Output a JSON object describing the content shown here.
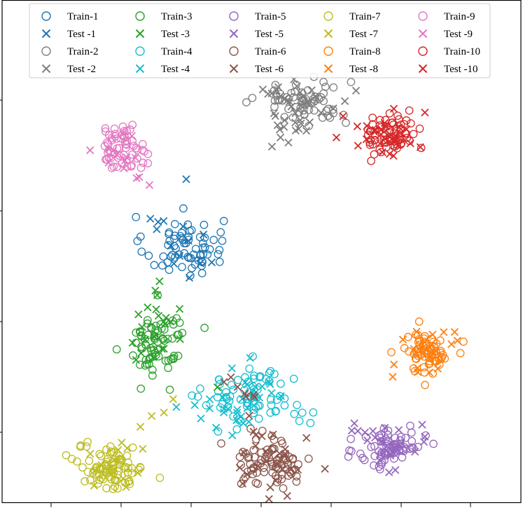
{
  "chart_data": {
    "type": "scatter",
    "title": "",
    "xlabel": "",
    "ylabel": "",
    "xlim": [
      0,
      100
    ],
    "ylim": [
      0,
      100
    ],
    "grid": false,
    "legend_position": "top",
    "marker_legend": {
      "o": "open circle (train)",
      "x": "cross (test)"
    },
    "classes": [
      {
        "id": 1,
        "color": "#1f77b4",
        "train_label": "Train-1",
        "test_label": "Test -1",
        "center": [
          35,
          51
        ],
        "spread": [
          3.8,
          3.0
        ],
        "train_n": 70,
        "test_n": 14,
        "test_tail_to": [
          30,
          67
        ]
      },
      {
        "id": 2,
        "color": "#7f7f7f",
        "train_label": "Train-2",
        "test_label": "Test -2",
        "center": [
          58,
          80
        ],
        "spread": [
          4.5,
          2.4
        ],
        "train_n": 60,
        "test_n": 42,
        "test_tail_to": [
          53,
          70
        ]
      },
      {
        "id": 3,
        "color": "#2ca02c",
        "train_label": "Train-3",
        "test_label": "Test -3",
        "center": [
          30,
          32
        ],
        "spread": [
          2.8,
          3.6
        ],
        "train_n": 70,
        "test_n": 24,
        "test_tail_to": [
          31,
          44
        ]
      },
      {
        "id": 4,
        "color": "#17becf",
        "train_label": "Train-4",
        "test_label": "Test -4",
        "center": [
          49,
          21
        ],
        "spread": [
          5.0,
          3.0
        ],
        "train_n": 75,
        "test_n": 32,
        "test_tail_to": [
          35,
          14
        ]
      },
      {
        "id": 5,
        "color": "#9467bd",
        "train_label": "Train-5",
        "test_label": "Test -5",
        "center": [
          75,
          11
        ],
        "spread": [
          3.2,
          2.2
        ],
        "train_n": 70,
        "test_n": 25,
        "test_tail_to": [
          68,
          15
        ]
      },
      {
        "id": 6,
        "color": "#8c564b",
        "train_label": "Train-6",
        "test_label": "Test -6",
        "center": [
          52,
          8
        ],
        "spread": [
          3.8,
          2.4
        ],
        "train_n": 80,
        "test_n": 34,
        "test_tail_to": [
          45,
          26
        ]
      },
      {
        "id": 7,
        "color": "#bcbd22",
        "train_label": "Train-7",
        "test_label": "Test -7",
        "center": [
          21,
          7
        ],
        "spread": [
          3.2,
          2.3
        ],
        "train_n": 85,
        "test_n": 18,
        "test_tail_to": [
          30,
          20
        ]
      },
      {
        "id": 8,
        "color": "#ff7f0e",
        "train_label": "Train-8",
        "test_label": "Test -8",
        "center": [
          82,
          30
        ],
        "spread": [
          2.4,
          2.0
        ],
        "train_n": 70,
        "test_n": 20,
        "test_tail_to": [
          73,
          25
        ]
      },
      {
        "id": 9,
        "color": "#e377c2",
        "train_label": "Train-9",
        "test_label": "Test -9",
        "center": [
          23,
          71
        ],
        "spread": [
          2.4,
          2.2
        ],
        "train_n": 60,
        "test_n": 14,
        "test_tail_to": [
          27,
          62
        ]
      },
      {
        "id": 10,
        "color": "#d62728",
        "train_label": "Train-10",
        "test_label": "Test -10",
        "center": [
          75,
          73
        ],
        "spread": [
          2.5,
          2.0
        ],
        "train_n": 70,
        "test_n": 28,
        "test_tail_to": [
          62,
          76
        ]
      }
    ],
    "x_ticks": [
      "",
      "",
      "",
      "",
      "",
      "",
      ""
    ],
    "y_ticks": [
      "",
      "",
      "",
      ""
    ]
  }
}
